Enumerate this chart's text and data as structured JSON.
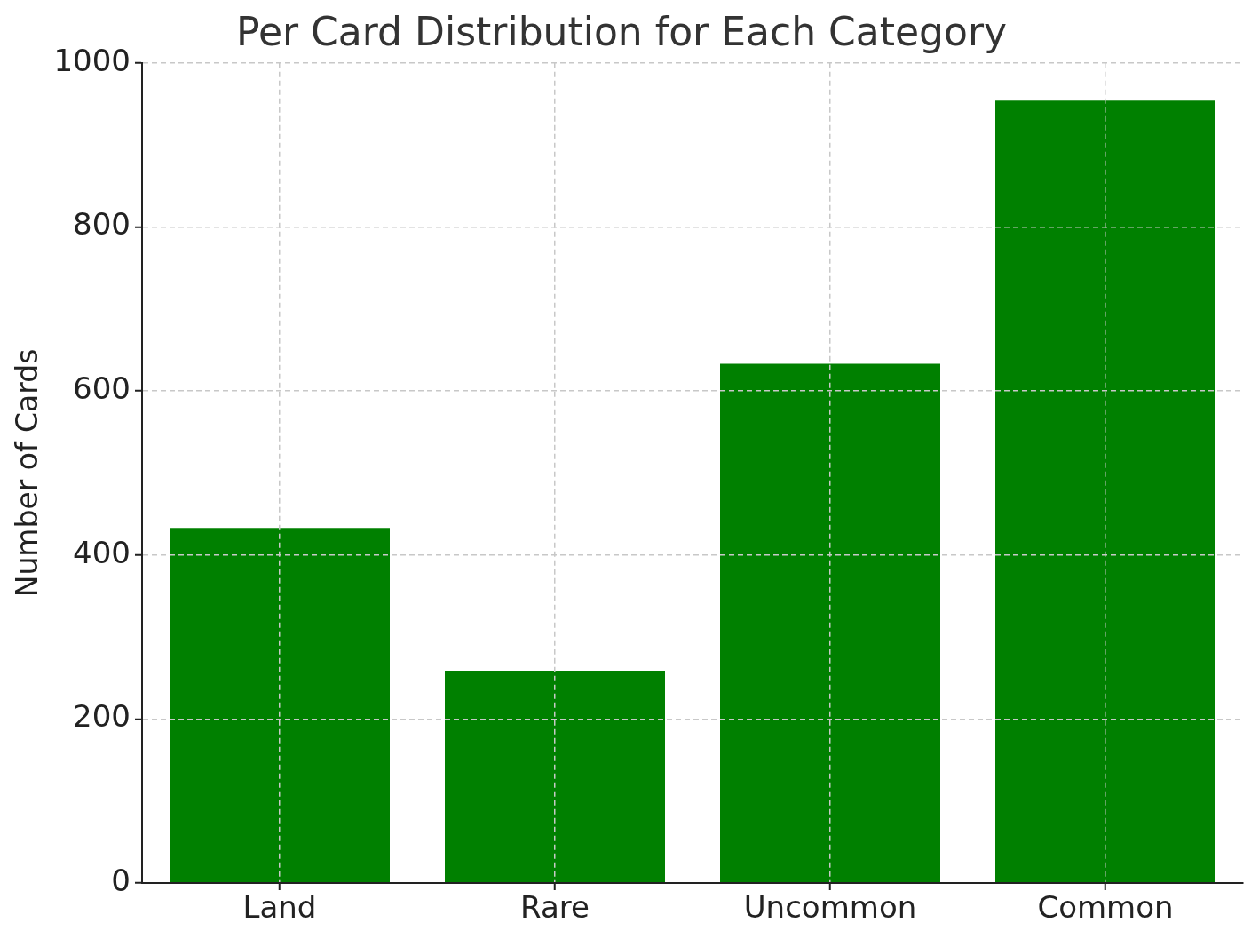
{
  "chart_data": {
    "type": "bar",
    "title": "Per Card Distribution for Each Category",
    "ylabel": "Number of Cards",
    "categories": [
      "Land",
      "Rare",
      "Uncommon",
      "Common"
    ],
    "values": [
      433,
      259,
      633,
      954
    ],
    "color": "#008000",
    "ylim": [
      0,
      1000
    ],
    "yticks": [
      0,
      200,
      400,
      600,
      800,
      1000
    ],
    "grid": true
  }
}
